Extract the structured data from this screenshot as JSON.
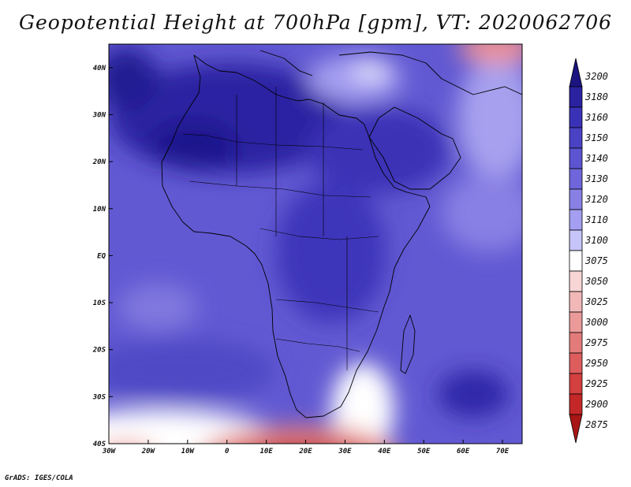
{
  "title": "Geopotential Height at 700hPa [gpm], VT: 2020062706",
  "credit": "GrADS: IGES/COLA",
  "map": {
    "lon_range": [
      -30,
      75
    ],
    "lat_range": [
      -40,
      45
    ],
    "lon_ticks": [
      {
        "value": -30,
        "label": "30W"
      },
      {
        "value": -20,
        "label": "20W"
      },
      {
        "value": -10,
        "label": "10W"
      },
      {
        "value": 0,
        "label": "0"
      },
      {
        "value": 10,
        "label": "10E"
      },
      {
        "value": 20,
        "label": "20E"
      },
      {
        "value": 30,
        "label": "30E"
      },
      {
        "value": 40,
        "label": "40E"
      },
      {
        "value": 50,
        "label": "50E"
      },
      {
        "value": 60,
        "label": "60E"
      },
      {
        "value": 70,
        "label": "70E"
      }
    ],
    "lat_ticks": [
      {
        "value": 40,
        "label": "40N"
      },
      {
        "value": 30,
        "label": "30N"
      },
      {
        "value": 20,
        "label": "20N"
      },
      {
        "value": 10,
        "label": "10N"
      },
      {
        "value": 0,
        "label": "EQ"
      },
      {
        "value": -10,
        "label": "10S"
      },
      {
        "value": -20,
        "label": "20S"
      },
      {
        "value": -30,
        "label": "30S"
      },
      {
        "value": -40,
        "label": "40S"
      }
    ]
  },
  "colorbar": {
    "levels": [
      "3200",
      "3180",
      "3160",
      "3150",
      "3140",
      "3130",
      "3120",
      "3110",
      "3100",
      "3075",
      "3050",
      "3025",
      "3000",
      "2975",
      "2950",
      "2925",
      "2900",
      "2875"
    ],
    "colors": [
      "#1c1480",
      "#2a22a0",
      "#3a32b6",
      "#4a42c4",
      "#5c54d0",
      "#6e66da",
      "#8880e4",
      "#a49ff0",
      "#c6c4f8",
      "#ffffff",
      "#f8d6d6",
      "#f2b8b8",
      "#eb9a9a",
      "#e47b7b",
      "#dd5d5d",
      "#d43f3f",
      "#c42727",
      "#a81616"
    ]
  }
}
